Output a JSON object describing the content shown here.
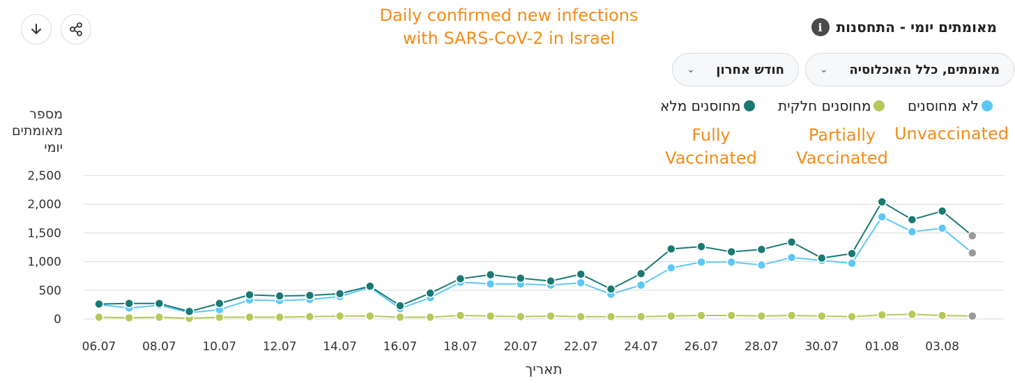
{
  "header": {
    "title": "מאומתים יומי - התחסנות",
    "info_icon": "info-icon",
    "download_icon": "arrow-down-icon",
    "share_icon": "share-icon"
  },
  "annotations": {
    "title_line1": "Daily confirmed new infections",
    "title_line2": "with SARS-CoV-2 in Israel",
    "fully_line1": "Fully",
    "fully_line2": "Vaccinated",
    "partially_line1": "Partially",
    "partially_line2": "Vaccinated",
    "unvaccinated": "Unvaccinated",
    "color": "#f28c1b"
  },
  "filters": {
    "population": "מאומתים, כלל האוכלוסיה",
    "period": "חודש אחרון"
  },
  "chart_data": {
    "type": "line",
    "ylabel_lines": [
      "מספר",
      "מאומתים",
      "יומי"
    ],
    "xlabel": "תאריך",
    "ylim": [
      0,
      2500
    ],
    "yticks": [
      0,
      500,
      1000,
      1500,
      2000,
      2500
    ],
    "ytick_labels": [
      "0",
      "500",
      "1,000",
      "1,500",
      "2,000",
      "2,500"
    ],
    "x": [
      "06.07",
      "07.07",
      "08.07",
      "09.07",
      "10.07",
      "11.07",
      "12.07",
      "13.07",
      "14.07",
      "15.07",
      "16.07",
      "17.07",
      "18.07",
      "19.07",
      "20.07",
      "21.07",
      "22.07",
      "23.07",
      "24.07",
      "25.07",
      "26.07",
      "27.07",
      "28.07",
      "29.07",
      "30.07",
      "31.07",
      "01.08",
      "02.08",
      "03.08",
      "04.08"
    ],
    "xtick_labels": [
      "06.07",
      "08.07",
      "10.07",
      "12.07",
      "14.07",
      "16.07",
      "18.07",
      "20.07",
      "22.07",
      "24.07",
      "26.07",
      "28.07",
      "30.07",
      "01.08",
      "03.08"
    ],
    "grid": true,
    "legend_position": "top-right",
    "series": [
      {
        "name": "לא מחוסנים",
        "color": "#5bc8f5",
        "values": [
          250,
          190,
          240,
          110,
          160,
          330,
          320,
          340,
          390,
          550,
          180,
          370,
          640,
          610,
          610,
          590,
          630,
          430,
          590,
          890,
          990,
          990,
          940,
          1070,
          1020,
          970,
          1780,
          1520,
          1580,
          1150
        ]
      },
      {
        "name": "מחוסנים חלקית",
        "color": "#b5c95a",
        "values": [
          30,
          20,
          30,
          10,
          30,
          30,
          30,
          40,
          50,
          50,
          30,
          30,
          60,
          50,
          40,
          50,
          40,
          40,
          40,
          50,
          60,
          60,
          50,
          60,
          50,
          40,
          70,
          80,
          60,
          50
        ]
      },
      {
        "name": "מחוסנים מלא",
        "color": "#1a7a72",
        "values": [
          260,
          270,
          270,
          130,
          270,
          420,
          400,
          410,
          440,
          570,
          230,
          450,
          700,
          770,
          710,
          660,
          780,
          520,
          790,
          1220,
          1260,
          1170,
          1210,
          1340,
          1060,
          1140,
          2040,
          1730,
          1880,
          1450
        ]
      }
    ]
  }
}
